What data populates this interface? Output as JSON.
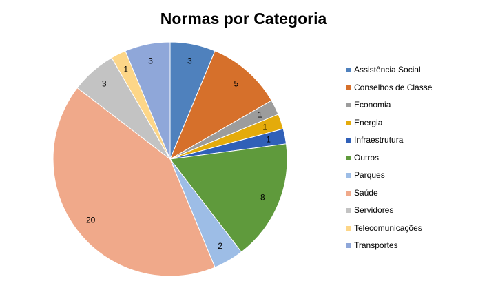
{
  "chart_data": {
    "type": "pie",
    "title": "Normas por Categoria",
    "legend_position": "right",
    "slices": [
      {
        "label": "Assistência Social",
        "value": 3,
        "color": "#4f81bd"
      },
      {
        "label": "Conselhos de Classe",
        "value": 5,
        "color": "#d6702b"
      },
      {
        "label": "Economia",
        "value": 1,
        "color": "#9c9c9c"
      },
      {
        "label": "Energia",
        "value": 1,
        "color": "#e4ab0b"
      },
      {
        "label": "Infraestrutura",
        "value": 1,
        "color": "#3060b8"
      },
      {
        "label": "Outros",
        "value": 8,
        "color": "#5f9a3c"
      },
      {
        "label": "Parques",
        "value": 2,
        "color": "#9dbde6"
      },
      {
        "label": "Saúde",
        "value": 20,
        "color": "#f0a98a"
      },
      {
        "label": "Servidores",
        "value": 3,
        "color": "#c3c3c3"
      },
      {
        "label": "Telecomunicações",
        "value": 1,
        "color": "#fdd688"
      },
      {
        "label": "Transportes",
        "value": 3,
        "color": "#8fa7d9"
      }
    ]
  }
}
